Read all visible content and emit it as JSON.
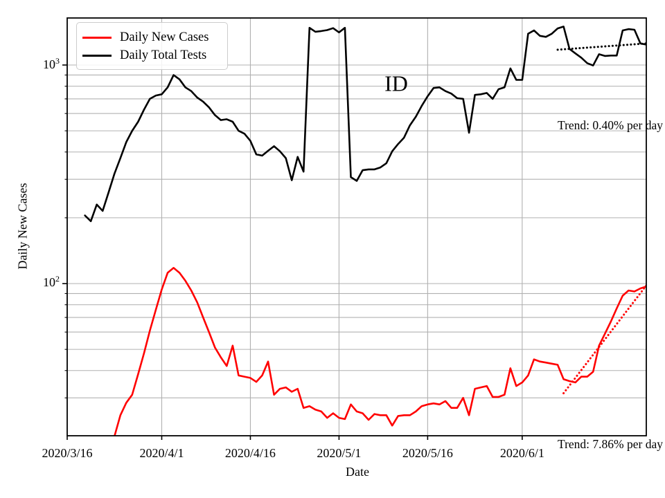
{
  "figure": {
    "ylabel": "Daily New Cases",
    "xlabel": "Date",
    "state_annotation": "ID",
    "legend": [
      {
        "label": "Daily New Cases",
        "color": "#ff0000"
      },
      {
        "label": "Daily Total Tests",
        "color": "#000000"
      }
    ]
  },
  "chart_data": {
    "type": "line",
    "x_axis": {
      "label": "Date",
      "tick_labels": [
        "2020/3/16",
        "2020/4/1",
        "2020/4/16",
        "2020/5/1",
        "2020/5/16",
        "2020/6/1"
      ],
      "range": [
        "2020/3/16",
        "2020/6/22"
      ]
    },
    "y_axis": {
      "label": "Daily New Cases",
      "scale": "log",
      "ticks": [
        {
          "base": "10",
          "exp": "3",
          "value": 1000
        },
        {
          "base": "10",
          "exp": "2",
          "value": 100
        }
      ],
      "range": [
        20.1,
        1641
      ],
      "minor_gridlines": [
        30,
        40,
        50,
        60,
        70,
        80,
        90,
        200,
        300,
        400,
        500,
        600,
        700,
        800,
        900
      ],
      "major_gridlines": [
        100,
        1000
      ]
    },
    "grid_color": "#b0b0b0",
    "series": [
      {
        "name": "Daily New Cases",
        "color": "#ff0000",
        "start_date": "2020/3/24",
        "values": [
          20,
          25,
          28.5,
          31,
          38.5,
          48,
          61,
          76,
          94,
          112,
          118,
          112,
          103,
          93,
          82,
          70,
          60,
          51,
          46,
          42,
          52,
          38,
          37.5,
          37,
          35.5,
          38,
          44,
          31,
          33,
          33.5,
          32,
          33,
          27,
          27.5,
          26.5,
          26,
          24.3,
          25.5,
          24.3,
          24,
          28,
          26,
          25.5,
          23.8,
          25.3,
          25,
          25,
          22.4,
          24.8,
          25,
          25,
          26,
          27.5,
          28,
          28.3,
          28,
          29,
          27,
          27,
          30,
          25,
          33,
          33.5,
          34,
          30.3,
          30.3,
          31,
          41,
          34,
          35.3,
          38,
          45,
          44,
          43.5,
          43,
          42.5,
          36.5,
          35.8,
          35.3,
          37.5,
          37.5,
          39.5,
          52,
          59,
          67,
          77,
          88,
          93,
          92,
          95,
          97
        ]
      },
      {
        "name": "Daily Total Tests",
        "color": "#000000",
        "start_date": "2020/3/19",
        "values": [
          205,
          193,
          230,
          215,
          261,
          318,
          375,
          444,
          500,
          550,
          625,
          700,
          725,
          735,
          790,
          900,
          860,
          790,
          760,
          710,
          680,
          640,
          590,
          560,
          565,
          550,
          500,
          485,
          450,
          390,
          385,
          405,
          425,
          403,
          375,
          297,
          380,
          325,
          1480,
          1420,
          1430,
          1445,
          1475,
          1410,
          1480,
          307,
          295,
          330,
          333,
          333,
          340,
          355,
          403,
          435,
          465,
          530,
          580,
          650,
          720,
          785,
          790,
          760,
          740,
          705,
          700,
          490,
          730,
          735,
          745,
          700,
          775,
          790,
          965,
          855,
          855,
          1390,
          1440,
          1360,
          1345,
          1390,
          1470,
          1500,
          1185,
          1130,
          1080,
          1020,
          995,
          1120,
          1100,
          1105,
          1105,
          1440,
          1460,
          1450,
          1255,
          1240
        ]
      }
    ],
    "trend_lines": [
      {
        "series": "Daily Total Tests",
        "label": "Trend: 0.40% per day",
        "color": "#000000",
        "style": "dotted",
        "start_date": "2020/6/7",
        "end_date": "2020/6/22",
        "start_value": 1175,
        "end_value": 1255
      },
      {
        "series": "Daily New Cases",
        "label": "Trend: 7.86% per day",
        "color": "#ff0000",
        "style": "dotted",
        "start_date": "2020/6/8",
        "end_date": "2020/6/22",
        "start_value": 31.5,
        "end_value": 98
      }
    ]
  }
}
